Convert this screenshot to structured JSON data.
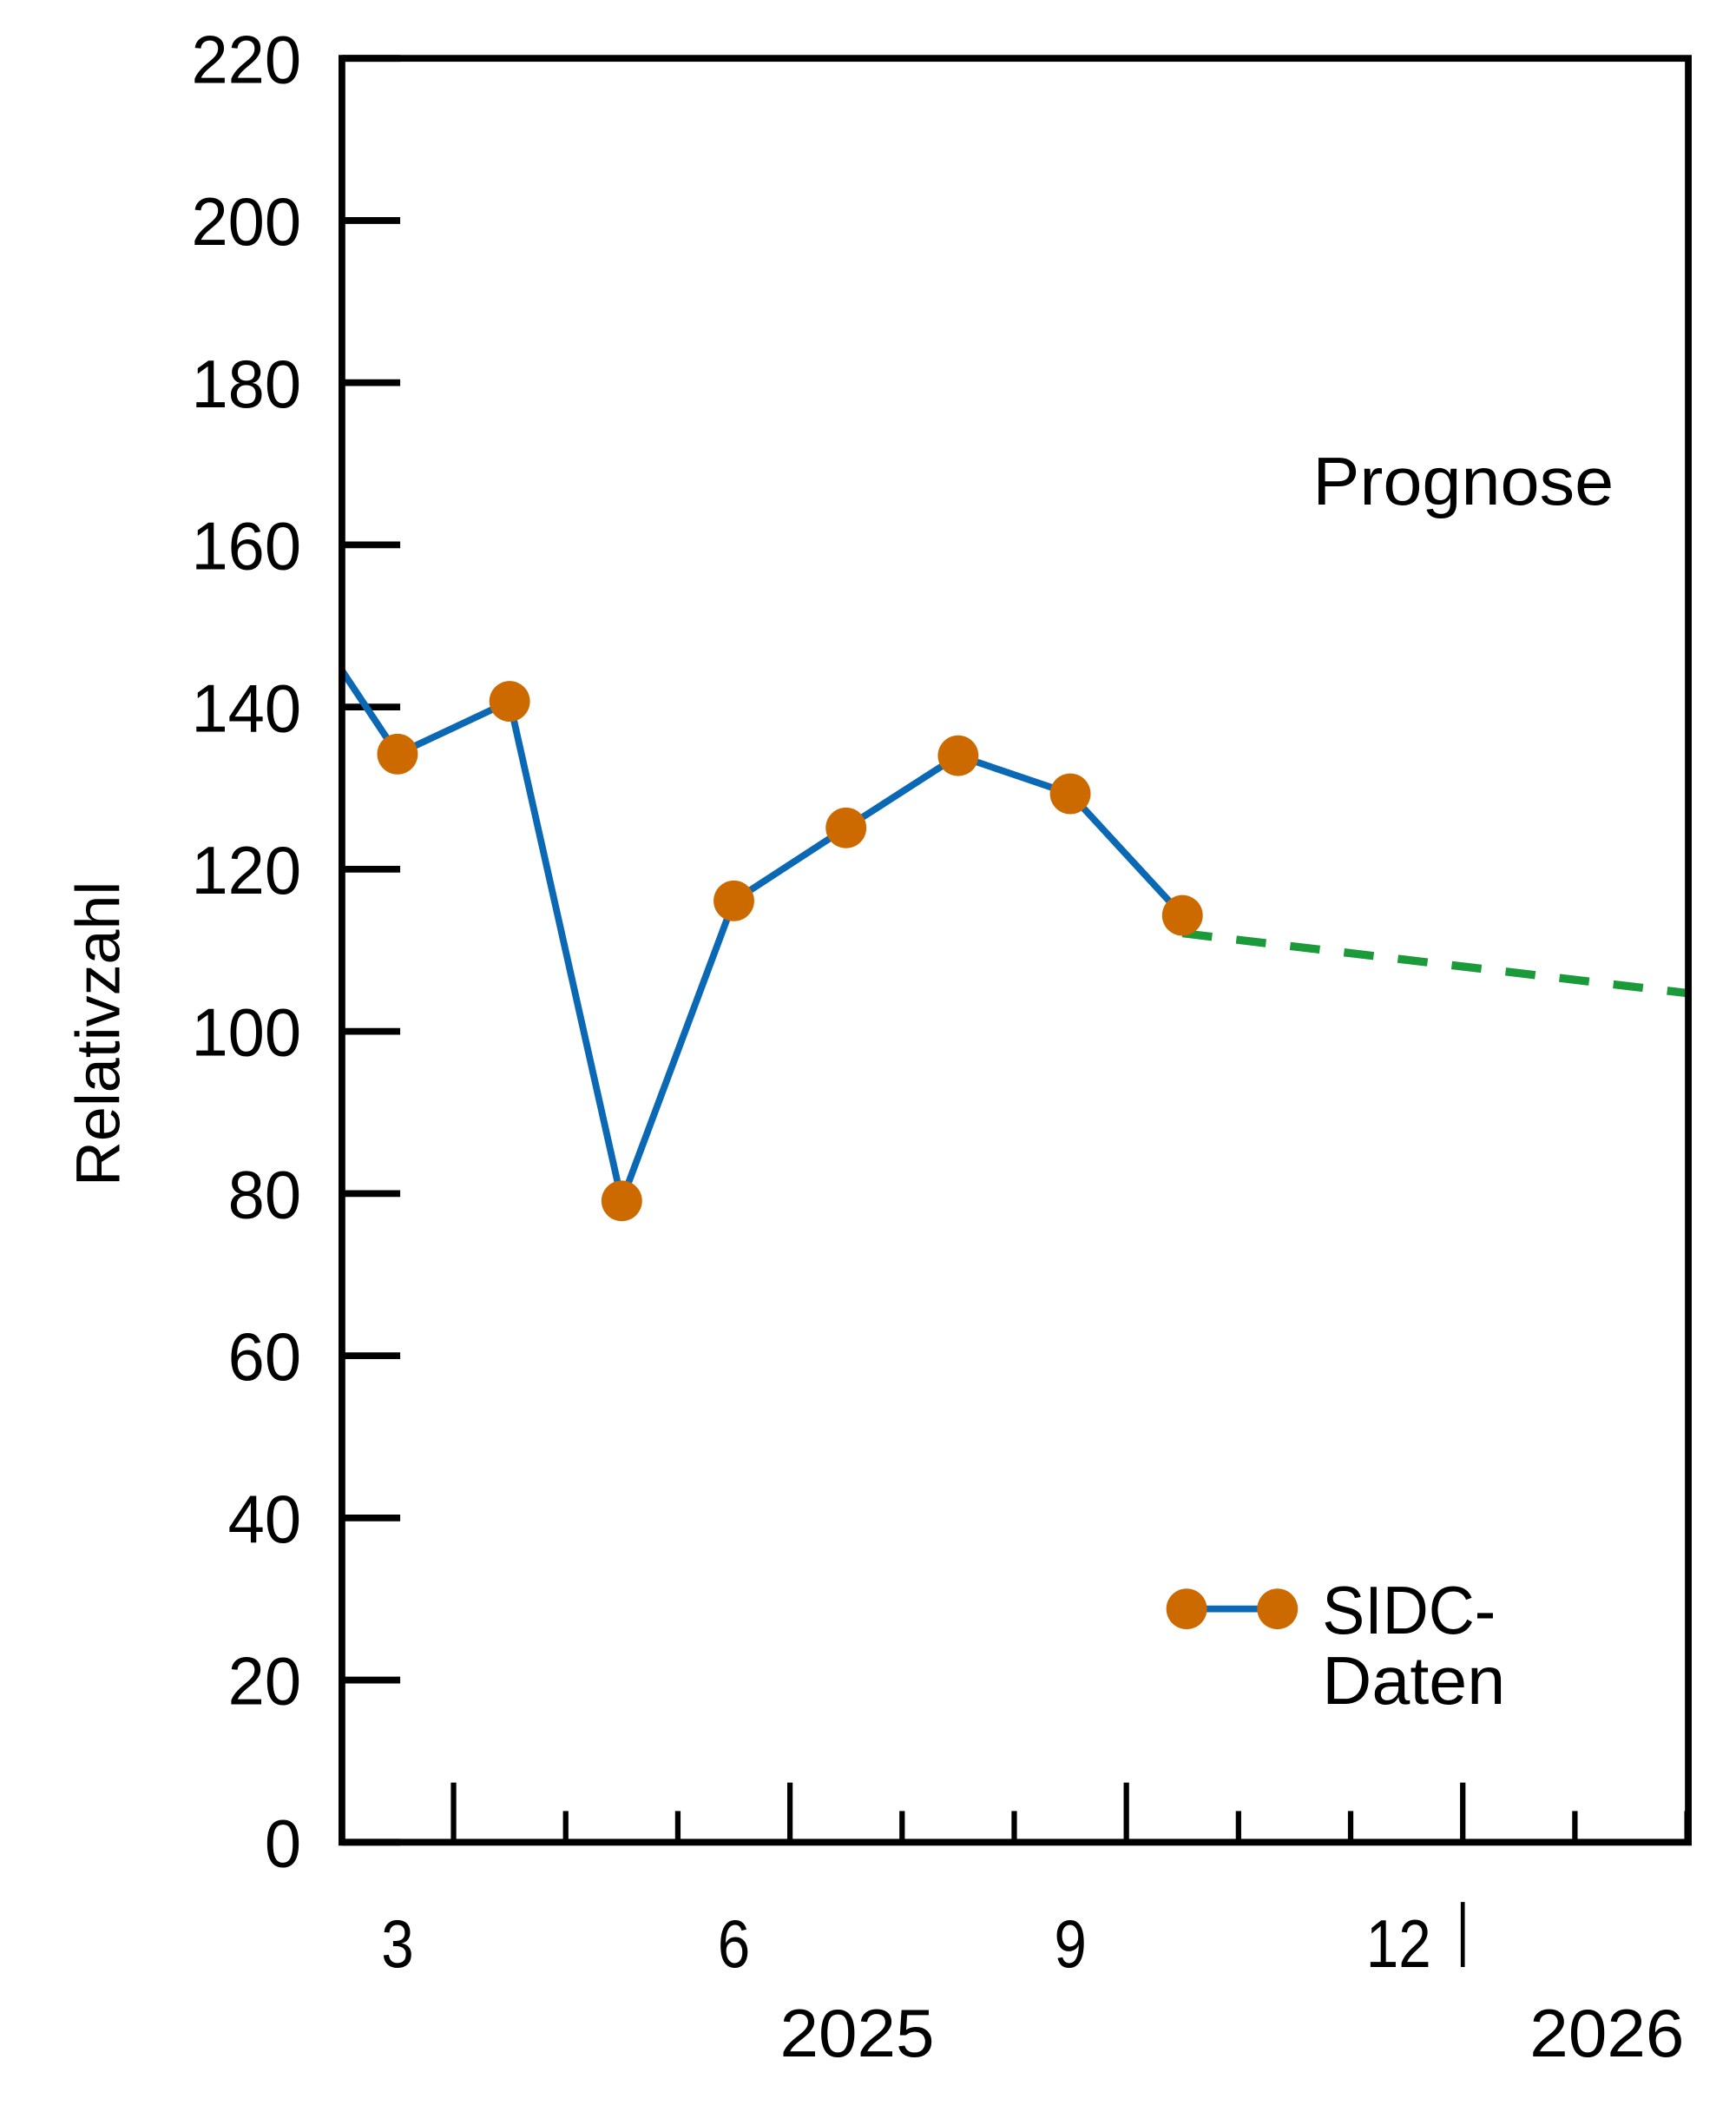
{
  "chart_data": {
    "type": "line",
    "title": "",
    "xlabel": "",
    "ylabel": "Relativzahl",
    "ylim": [
      0,
      220
    ],
    "yticks": [
      0,
      20,
      40,
      60,
      80,
      100,
      120,
      140,
      160,
      180,
      200,
      220
    ],
    "xticks": [
      {
        "month": 3,
        "label": "3"
      },
      {
        "month": 6,
        "label": "6"
      },
      {
        "month": 9,
        "label": "9"
      },
      {
        "month": 12,
        "label": "12"
      }
    ],
    "year_labels": [
      "2025",
      "2026"
    ],
    "grid": false,
    "legend_position": "bottom-right",
    "series": [
      {
        "name": "SIDC-Daten",
        "legend_lines": [
          "SIDC-",
          "Daten"
        ],
        "color": "#0a68b4",
        "marker_color": "#cc6a00",
        "x": [
          "2025-02",
          "2025-03",
          "2025-04",
          "2025-05",
          "2025-06",
          "2025-07",
          "2025-08",
          "2025-09",
          "2025-10"
        ],
        "y": [
          155,
          134.2,
          140.7,
          79.1,
          116.1,
          125.1,
          134.0,
          129.3,
          114.3
        ],
        "markers": [
          false,
          true,
          true,
          true,
          true,
          true,
          true,
          true,
          true
        ]
      },
      {
        "name": "Prognose",
        "color": "#1a9a38",
        "dashed": true,
        "x": [
          "2025-10",
          "2026-03"
        ],
        "y": [
          112.1,
          103.9
        ]
      }
    ]
  }
}
